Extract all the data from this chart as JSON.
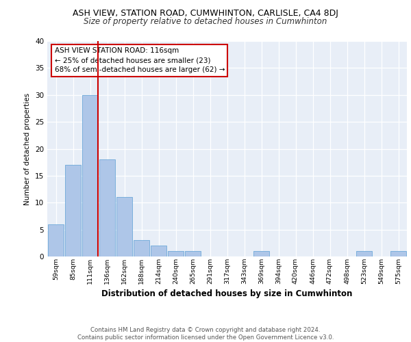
{
  "title1": "ASH VIEW, STATION ROAD, CUMWHINTON, CARLISLE, CA4 8DJ",
  "title2": "Size of property relative to detached houses in Cumwhinton",
  "xlabel": "Distribution of detached houses by size in Cumwhinton",
  "ylabel": "Number of detached properties",
  "categories": [
    "59sqm",
    "85sqm",
    "111sqm",
    "136sqm",
    "162sqm",
    "188sqm",
    "214sqm",
    "240sqm",
    "265sqm",
    "291sqm",
    "317sqm",
    "343sqm",
    "369sqm",
    "394sqm",
    "420sqm",
    "446sqm",
    "472sqm",
    "498sqm",
    "523sqm",
    "549sqm",
    "575sqm"
  ],
  "values": [
    6,
    17,
    30,
    18,
    11,
    3,
    2,
    1,
    1,
    0,
    0,
    0,
    1,
    0,
    0,
    0,
    0,
    0,
    1,
    0,
    1
  ],
  "bar_color": "#aec6e8",
  "bar_edge_color": "#5a9fd4",
  "vline_color": "#cc0000",
  "annotation_text": "ASH VIEW STATION ROAD: 116sqm\n← 25% of detached houses are smaller (23)\n68% of semi-detached houses are larger (62) →",
  "ylim": [
    0,
    40
  ],
  "yticks": [
    0,
    5,
    10,
    15,
    20,
    25,
    30,
    35,
    40
  ],
  "background_color": "#e8eef7",
  "footer": "Contains HM Land Registry data © Crown copyright and database right 2024.\nContains public sector information licensed under the Open Government Licence v3.0."
}
